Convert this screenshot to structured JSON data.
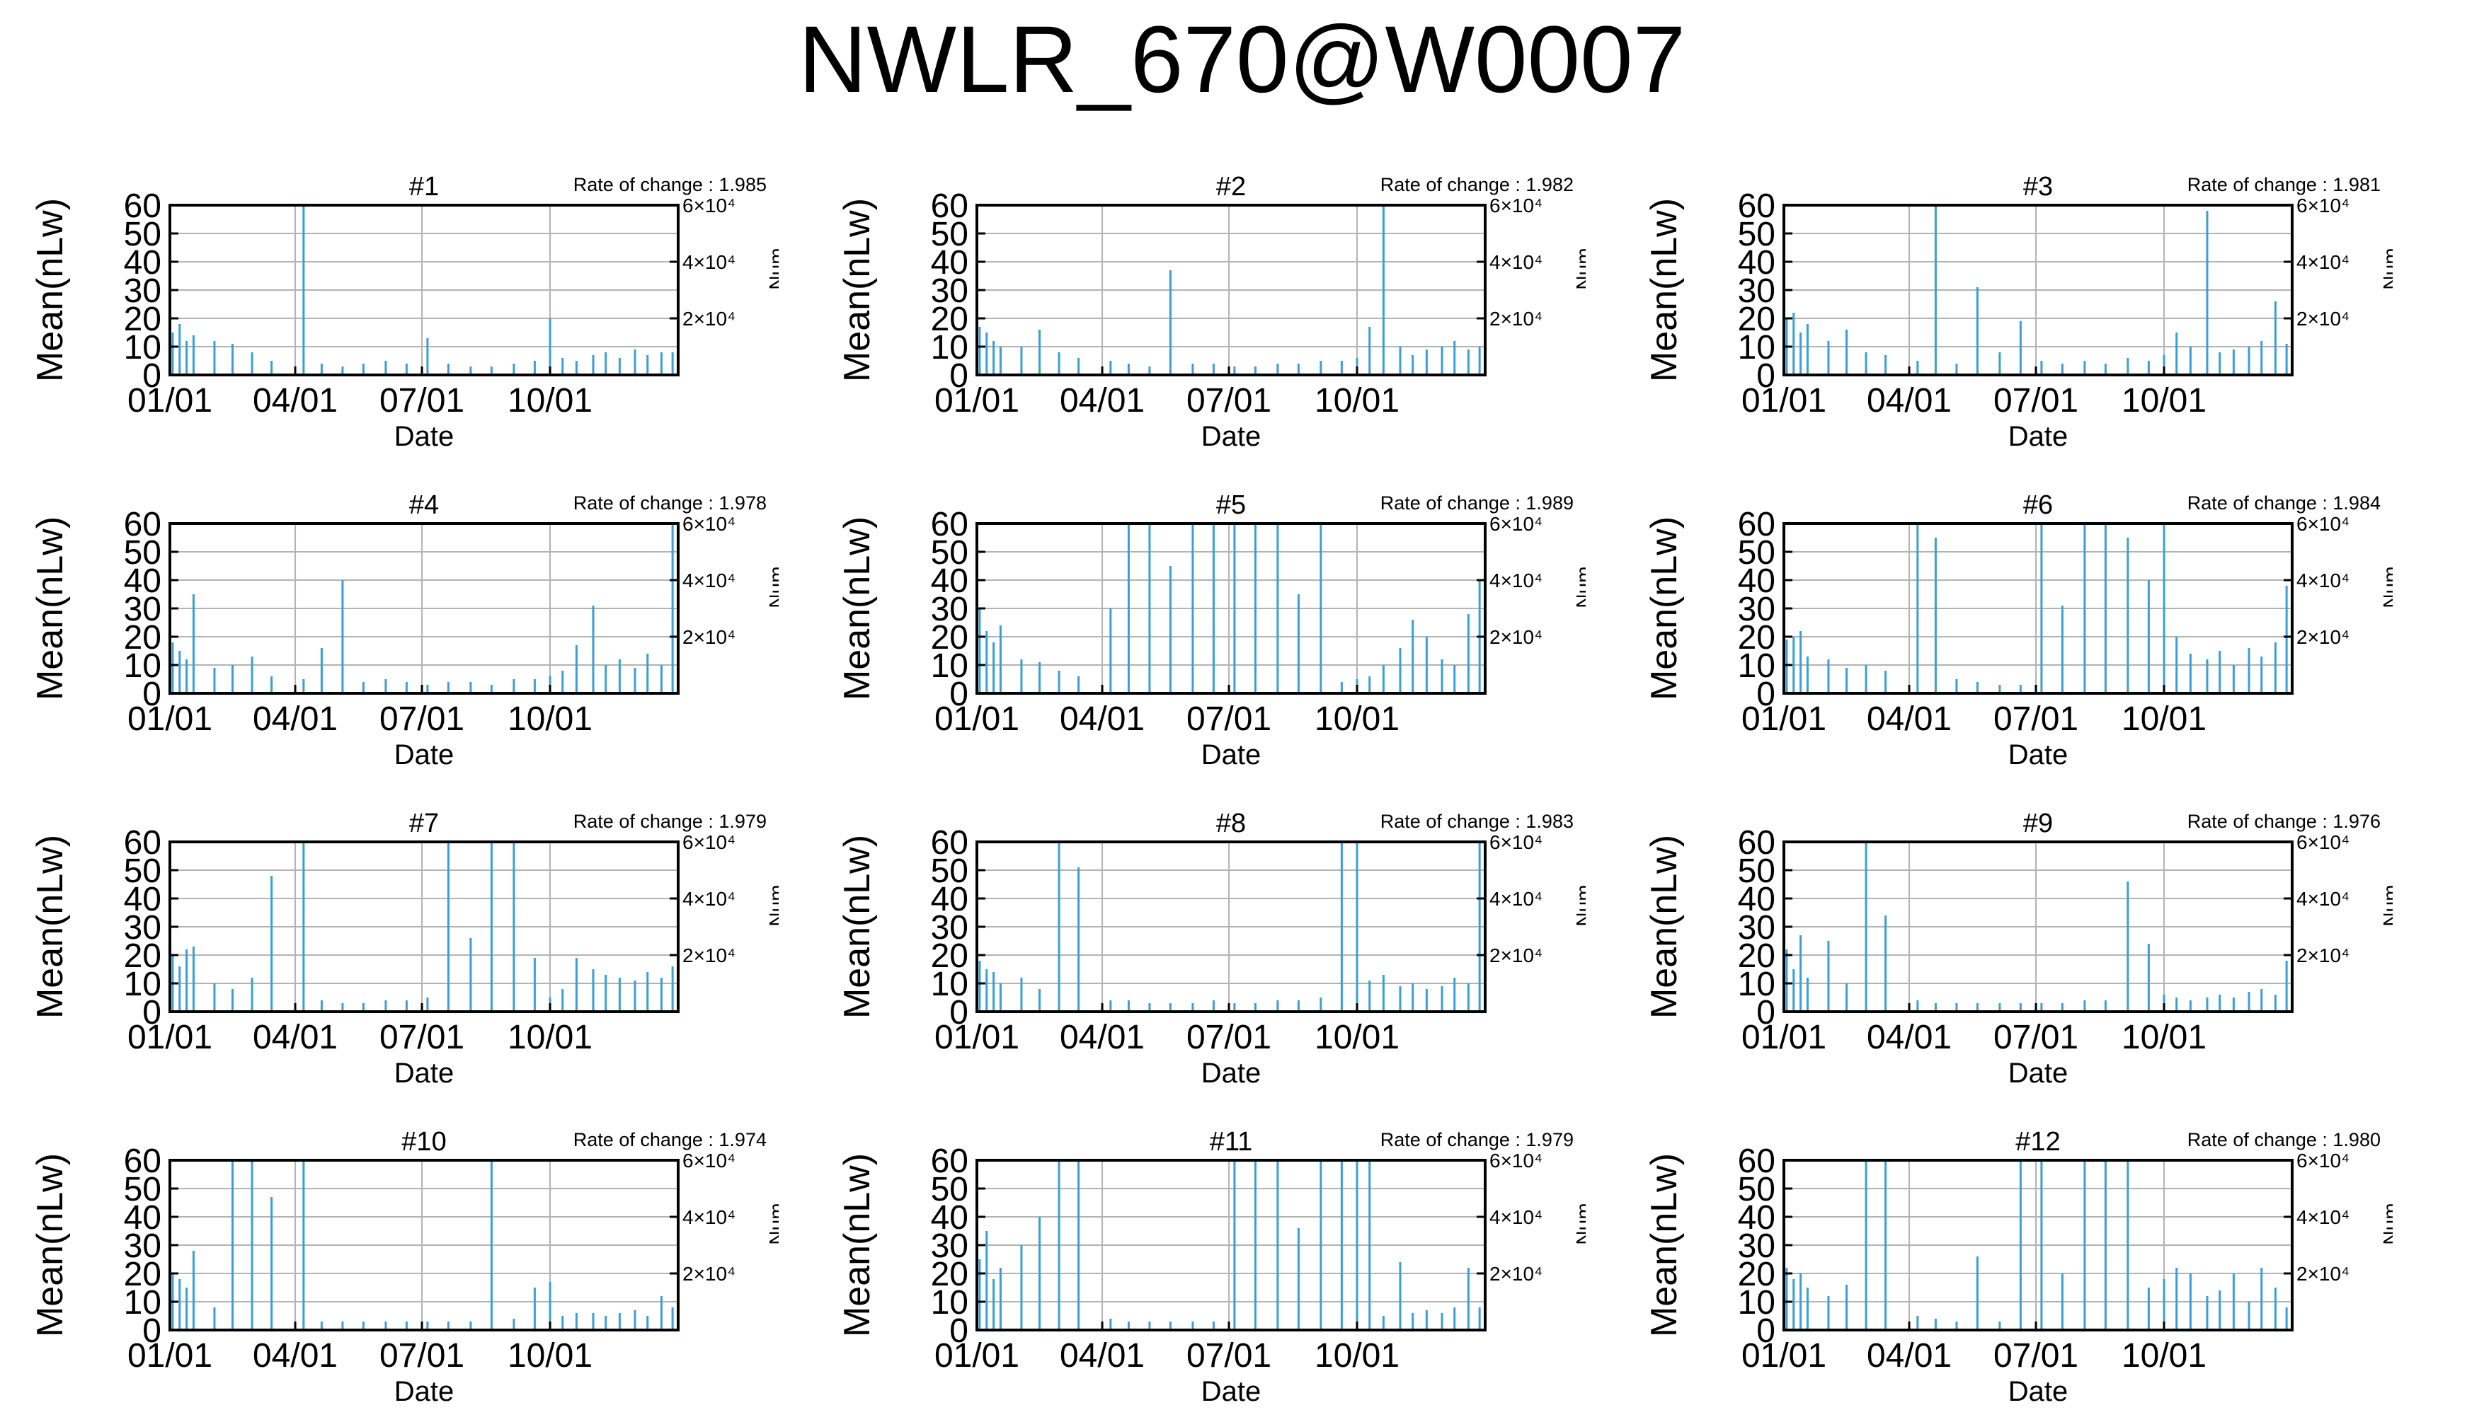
{
  "title": "NWLR_670@W0007",
  "colors": {
    "series": "#3a9fd6",
    "grid": "#b3b3b3",
    "axis": "#000000"
  },
  "chart_data": [
    {
      "type": "bar",
      "panel_title": "#1",
      "note": "Rate of change : 1.985",
      "xlabel": "Date",
      "ylabel": "Mean(nLw)",
      "y2label": "Num",
      "ylim": [
        0,
        60
      ],
      "y_ticks": [
        0,
        10,
        20,
        30,
        40,
        50,
        60
      ],
      "y2_tick_labels": [
        "2×10⁴",
        "4×10⁴",
        "6×10⁴"
      ],
      "x_tick_labels": [
        "01/01",
        "04/01",
        "07/01",
        "10/01"
      ],
      "grid": true,
      "x": [
        "01/03",
        "01/08",
        "01/13",
        "01/18",
        "02/02",
        "02/15",
        "03/01",
        "03/15",
        "04/07",
        "04/20",
        "05/05",
        "05/20",
        "06/05",
        "06/20",
        "07/05",
        "07/20",
        "08/05",
        "08/20",
        "09/05",
        "09/20",
        "10/01",
        "10/10",
        "10/20",
        "11/01",
        "11/10",
        "11/20",
        "12/01",
        "12/10",
        "12/20",
        "12/28"
      ],
      "values": [
        15,
        18,
        12,
        14,
        12,
        11,
        8,
        5,
        60,
        4,
        3,
        4,
        5,
        4,
        13,
        4,
        3,
        3,
        4,
        5,
        20,
        6,
        5,
        7,
        8,
        6,
        9,
        7,
        8,
        8
      ]
    },
    {
      "type": "bar",
      "panel_title": "#2",
      "note": "Rate of change : 1.982",
      "xlabel": "Date",
      "ylabel": "Mean(nLw)",
      "y2label": "Num",
      "ylim": [
        0,
        60
      ],
      "y_ticks": [
        0,
        10,
        20,
        30,
        40,
        50,
        60
      ],
      "y2_tick_labels": [
        "2×10⁴",
        "4×10⁴",
        "6×10⁴"
      ],
      "x_tick_labels": [
        "01/01",
        "04/01",
        "07/01",
        "10/01"
      ],
      "grid": true,
      "x": [
        "01/03",
        "01/08",
        "01/13",
        "01/18",
        "02/02",
        "02/15",
        "03/01",
        "03/15",
        "04/07",
        "04/20",
        "05/05",
        "05/20",
        "06/05",
        "06/20",
        "07/05",
        "07/20",
        "08/05",
        "08/20",
        "09/05",
        "09/20",
        "10/01",
        "10/10",
        "10/20",
        "11/01",
        "11/10",
        "11/20",
        "12/01",
        "12/10",
        "12/20",
        "12/28"
      ],
      "values": [
        17,
        15,
        12,
        10,
        10,
        16,
        8,
        6,
        5,
        4,
        3,
        37,
        4,
        4,
        3,
        3,
        4,
        4,
        5,
        5,
        6,
        17,
        60,
        10,
        7,
        9,
        10,
        12,
        9,
        10
      ]
    },
    {
      "type": "bar",
      "panel_title": "#3",
      "note": "Rate of change : 1.981",
      "xlabel": "Date",
      "ylabel": "Mean(nLw)",
      "y2label": "Num",
      "ylim": [
        0,
        60
      ],
      "y_ticks": [
        0,
        10,
        20,
        30,
        40,
        50,
        60
      ],
      "y2_tick_labels": [
        "2×10⁴",
        "4×10⁴",
        "6×10⁴"
      ],
      "x_tick_labels": [
        "01/01",
        "04/01",
        "07/01",
        "10/01"
      ],
      "grid": true,
      "x": [
        "01/03",
        "01/08",
        "01/13",
        "01/18",
        "02/02",
        "02/15",
        "03/01",
        "03/15",
        "04/07",
        "04/20",
        "05/05",
        "05/20",
        "06/05",
        "06/20",
        "07/05",
        "07/20",
        "08/05",
        "08/20",
        "09/05",
        "09/20",
        "10/01",
        "10/10",
        "10/20",
        "11/01",
        "11/10",
        "11/20",
        "12/01",
        "12/10",
        "12/20",
        "12/28"
      ],
      "values": [
        20,
        22,
        15,
        18,
        12,
        16,
        8,
        7,
        5,
        60,
        4,
        31,
        8,
        19,
        5,
        4,
        5,
        4,
        6,
        5,
        7,
        15,
        10,
        58,
        8,
        9,
        10,
        12,
        26,
        11
      ]
    },
    {
      "type": "bar",
      "panel_title": "#4",
      "note": "Rate of change : 1.978",
      "xlabel": "Date",
      "ylabel": "Mean(nLw)",
      "y2label": "Num",
      "ylim": [
        0,
        60
      ],
      "y_ticks": [
        0,
        10,
        20,
        30,
        40,
        50,
        60
      ],
      "y2_tick_labels": [
        "2×10⁴",
        "4×10⁴",
        "6×10⁴"
      ],
      "x_tick_labels": [
        "01/01",
        "04/01",
        "07/01",
        "10/01"
      ],
      "grid": true,
      "x": [
        "01/03",
        "01/08",
        "01/13",
        "01/18",
        "02/02",
        "02/15",
        "03/01",
        "03/15",
        "04/07",
        "04/20",
        "05/05",
        "05/20",
        "06/05",
        "06/20",
        "07/05",
        "07/20",
        "08/05",
        "08/20",
        "09/05",
        "09/20",
        "10/01",
        "10/10",
        "10/20",
        "11/01",
        "11/10",
        "11/20",
        "12/01",
        "12/10",
        "12/20",
        "12/28"
      ],
      "values": [
        18,
        15,
        12,
        35,
        9,
        10,
        13,
        6,
        5,
        16,
        40,
        4,
        5,
        4,
        3,
        4,
        4,
        3,
        5,
        5,
        6,
        8,
        17,
        31,
        10,
        12,
        9,
        14,
        10,
        60
      ]
    },
    {
      "type": "bar",
      "panel_title": "#5",
      "note": "Rate of change : 1.989",
      "xlabel": "Date",
      "ylabel": "Mean(nLw)",
      "y2label": "Num",
      "ylim": [
        0,
        60
      ],
      "y_ticks": [
        0,
        10,
        20,
        30,
        40,
        50,
        60
      ],
      "y2_tick_labels": [
        "2×10⁴",
        "4×10⁴",
        "6×10⁴"
      ],
      "x_tick_labels": [
        "01/01",
        "04/01",
        "07/01",
        "10/01"
      ],
      "grid": true,
      "x": [
        "01/03",
        "01/08",
        "01/13",
        "01/18",
        "02/02",
        "02/15",
        "03/01",
        "03/15",
        "04/07",
        "04/20",
        "05/05",
        "05/20",
        "06/05",
        "06/20",
        "07/05",
        "07/20",
        "08/05",
        "08/20",
        "09/05",
        "09/20",
        "10/01",
        "10/10",
        "10/20",
        "11/01",
        "11/10",
        "11/20",
        "12/01",
        "12/10",
        "12/20",
        "12/28"
      ],
      "values": [
        30,
        22,
        18,
        24,
        12,
        11,
        8,
        6,
        30,
        60,
        60,
        45,
        60,
        60,
        60,
        60,
        60,
        35,
        60,
        4,
        5,
        6,
        10,
        16,
        26,
        20,
        12,
        10,
        28,
        40
      ]
    },
    {
      "type": "bar",
      "panel_title": "#6",
      "note": "Rate of change : 1.984",
      "xlabel": "Date",
      "ylabel": "Mean(nLw)",
      "y2label": "Num",
      "ylim": [
        0,
        60
      ],
      "y_ticks": [
        0,
        10,
        20,
        30,
        40,
        50,
        60
      ],
      "y2_tick_labels": [
        "2×10⁴",
        "4×10⁴",
        "6×10⁴"
      ],
      "x_tick_labels": [
        "01/01",
        "04/01",
        "07/01",
        "10/01"
      ],
      "grid": true,
      "x": [
        "01/03",
        "01/08",
        "01/13",
        "01/18",
        "02/02",
        "02/15",
        "03/01",
        "03/15",
        "04/07",
        "04/20",
        "05/05",
        "05/20",
        "06/05",
        "06/20",
        "07/05",
        "07/20",
        "08/05",
        "08/20",
        "09/05",
        "09/20",
        "10/01",
        "10/10",
        "10/20",
        "11/01",
        "11/10",
        "11/20",
        "12/01",
        "12/10",
        "12/20",
        "12/28"
      ],
      "values": [
        19,
        20,
        22,
        13,
        12,
        9,
        10,
        8,
        60,
        55,
        5,
        4,
        3,
        3,
        60,
        31,
        60,
        60,
        55,
        40,
        60,
        20,
        14,
        12,
        15,
        10,
        16,
        13,
        18,
        38
      ]
    },
    {
      "type": "bar",
      "panel_title": "#7",
      "note": "Rate of change : 1.979",
      "xlabel": "Date",
      "ylabel": "Mean(nLw)",
      "y2label": "Num",
      "ylim": [
        0,
        60
      ],
      "y_ticks": [
        0,
        10,
        20,
        30,
        40,
        50,
        60
      ],
      "y2_tick_labels": [
        "2×10⁴",
        "4×10⁴",
        "6×10⁴"
      ],
      "x_tick_labels": [
        "01/01",
        "04/01",
        "07/01",
        "10/01"
      ],
      "grid": true,
      "x": [
        "01/03",
        "01/08",
        "01/13",
        "01/18",
        "02/02",
        "02/15",
        "03/01",
        "03/15",
        "04/07",
        "04/20",
        "05/05",
        "05/20",
        "06/05",
        "06/20",
        "07/05",
        "07/20",
        "08/05",
        "08/20",
        "09/05",
        "09/20",
        "10/01",
        "10/10",
        "10/20",
        "11/01",
        "11/10",
        "11/20",
        "12/01",
        "12/10",
        "12/20",
        "12/28"
      ],
      "values": [
        20,
        16,
        22,
        23,
        10,
        8,
        12,
        48,
        60,
        4,
        3,
        3,
        4,
        4,
        5,
        60,
        26,
        60,
        60,
        19,
        5,
        8,
        19,
        15,
        13,
        12,
        11,
        14,
        12,
        16
      ]
    },
    {
      "type": "bar",
      "panel_title": "#8",
      "note": "Rate of change : 1.983",
      "xlabel": "Date",
      "ylabel": "Mean(nLw)",
      "y2label": "Num",
      "ylim": [
        0,
        60
      ],
      "y_ticks": [
        0,
        10,
        20,
        30,
        40,
        50,
        60
      ],
      "y2_tick_labels": [
        "2×10⁴",
        "4×10⁴",
        "6×10⁴"
      ],
      "x_tick_labels": [
        "01/01",
        "04/01",
        "07/01",
        "10/01"
      ],
      "grid": true,
      "x": [
        "01/03",
        "01/08",
        "01/13",
        "01/18",
        "02/02",
        "02/15",
        "03/01",
        "03/15",
        "04/07",
        "04/20",
        "05/05",
        "05/20",
        "06/05",
        "06/20",
        "07/05",
        "07/20",
        "08/05",
        "08/20",
        "09/05",
        "09/20",
        "10/01",
        "10/10",
        "10/20",
        "11/01",
        "11/10",
        "11/20",
        "12/01",
        "12/10",
        "12/20",
        "12/28"
      ],
      "values": [
        18,
        15,
        14,
        10,
        12,
        8,
        60,
        51,
        4,
        4,
        3,
        3,
        3,
        4,
        3,
        3,
        4,
        4,
        5,
        60,
        60,
        11,
        13,
        9,
        10,
        8,
        9,
        12,
        10,
        60
      ]
    },
    {
      "type": "bar",
      "panel_title": "#9",
      "note": "Rate of change : 1.976",
      "xlabel": "Date",
      "ylabel": "Mean(nLw)",
      "y2label": "Num",
      "ylim": [
        0,
        60
      ],
      "y_ticks": [
        0,
        10,
        20,
        30,
        40,
        50,
        60
      ],
      "y2_tick_labels": [
        "2×10⁴",
        "4×10⁴",
        "6×10⁴"
      ],
      "x_tick_labels": [
        "01/01",
        "04/01",
        "07/01",
        "10/01"
      ],
      "grid": true,
      "x": [
        "01/03",
        "01/08",
        "01/13",
        "01/18",
        "02/02",
        "02/15",
        "03/01",
        "03/15",
        "04/07",
        "04/20",
        "05/05",
        "05/20",
        "06/05",
        "06/20",
        "07/05",
        "07/20",
        "08/05",
        "08/20",
        "09/05",
        "09/20",
        "10/01",
        "10/10",
        "10/20",
        "11/01",
        "11/10",
        "11/20",
        "12/01",
        "12/10",
        "12/20",
        "12/28"
      ],
      "values": [
        22,
        15,
        27,
        12,
        25,
        10,
        60,
        34,
        4,
        3,
        3,
        3,
        3,
        3,
        3,
        3,
        4,
        4,
        46,
        24,
        6,
        5,
        4,
        5,
        6,
        5,
        7,
        8,
        6,
        18
      ]
    },
    {
      "type": "bar",
      "panel_title": "#10",
      "note": "Rate of change : 1.974",
      "xlabel": "Date",
      "ylabel": "Mean(nLw)",
      "y2label": "Num",
      "ylim": [
        0,
        60
      ],
      "y_ticks": [
        0,
        10,
        20,
        30,
        40,
        50,
        60
      ],
      "y2_tick_labels": [
        "2×10⁴",
        "4×10⁴",
        "6×10⁴"
      ],
      "x_tick_labels": [
        "01/01",
        "04/01",
        "07/01",
        "10/01"
      ],
      "grid": true,
      "x": [
        "01/03",
        "01/08",
        "01/13",
        "01/18",
        "02/02",
        "02/15",
        "03/01",
        "03/15",
        "04/07",
        "04/20",
        "05/05",
        "05/20",
        "06/05",
        "06/20",
        "07/05",
        "07/20",
        "08/05",
        "08/20",
        "09/05",
        "09/20",
        "10/01",
        "10/10",
        "10/20",
        "11/01",
        "11/10",
        "11/20",
        "12/01",
        "12/10",
        "12/20",
        "12/28"
      ],
      "values": [
        20,
        18,
        15,
        28,
        8,
        60,
        60,
        47,
        60,
        3,
        3,
        3,
        3,
        3,
        3,
        3,
        3,
        60,
        4,
        15,
        17,
        5,
        6,
        6,
        5,
        6,
        7,
        5,
        12,
        8
      ]
    },
    {
      "type": "bar",
      "panel_title": "#11",
      "note": "Rate of change : 1.979",
      "xlabel": "Date",
      "ylabel": "Mean(nLw)",
      "y2label": "Num",
      "ylim": [
        0,
        60
      ],
      "y_ticks": [
        0,
        10,
        20,
        30,
        40,
        50,
        60
      ],
      "y2_tick_labels": [
        "2×10⁴",
        "4×10⁴",
        "6×10⁴"
      ],
      "x_tick_labels": [
        "01/01",
        "04/01",
        "07/01",
        "10/01"
      ],
      "grid": true,
      "x": [
        "01/03",
        "01/08",
        "01/13",
        "01/18",
        "02/02",
        "02/15",
        "03/01",
        "03/15",
        "04/07",
        "04/20",
        "05/05",
        "05/20",
        "06/05",
        "06/20",
        "07/05",
        "07/20",
        "08/05",
        "08/20",
        "09/05",
        "09/20",
        "10/01",
        "10/10",
        "10/20",
        "11/01",
        "11/10",
        "11/20",
        "12/01",
        "12/10",
        "12/20",
        "12/28"
      ],
      "values": [
        25,
        35,
        18,
        22,
        30,
        40,
        60,
        60,
        4,
        3,
        3,
        3,
        3,
        3,
        60,
        60,
        60,
        36,
        60,
        60,
        60,
        60,
        5,
        24,
        6,
        7,
        6,
        8,
        22,
        8
      ]
    },
    {
      "type": "bar",
      "panel_title": "#12",
      "note": "Rate of change : 1.980",
      "xlabel": "Date",
      "ylabel": "Mean(nLw)",
      "y2label": "Num",
      "ylim": [
        0,
        60
      ],
      "y_ticks": [
        0,
        10,
        20,
        30,
        40,
        50,
        60
      ],
      "y2_tick_labels": [
        "2×10⁴",
        "4×10⁴",
        "6×10⁴"
      ],
      "x_tick_labels": [
        "01/01",
        "04/01",
        "07/01",
        "10/01"
      ],
      "grid": true,
      "x": [
        "01/03",
        "01/08",
        "01/13",
        "01/18",
        "02/02",
        "02/15",
        "03/01",
        "03/15",
        "04/07",
        "04/20",
        "05/05",
        "05/20",
        "06/05",
        "06/20",
        "07/05",
        "07/20",
        "08/05",
        "08/20",
        "09/05",
        "09/20",
        "10/01",
        "10/10",
        "10/20",
        "11/01",
        "11/10",
        "11/20",
        "12/01",
        "12/10",
        "12/20",
        "12/28"
      ],
      "values": [
        22,
        18,
        20,
        15,
        12,
        16,
        60,
        60,
        5,
        4,
        3,
        26,
        3,
        60,
        60,
        20,
        60,
        60,
        60,
        15,
        18,
        22,
        20,
        12,
        14,
        20,
        10,
        22,
        15,
        8
      ]
    }
  ]
}
